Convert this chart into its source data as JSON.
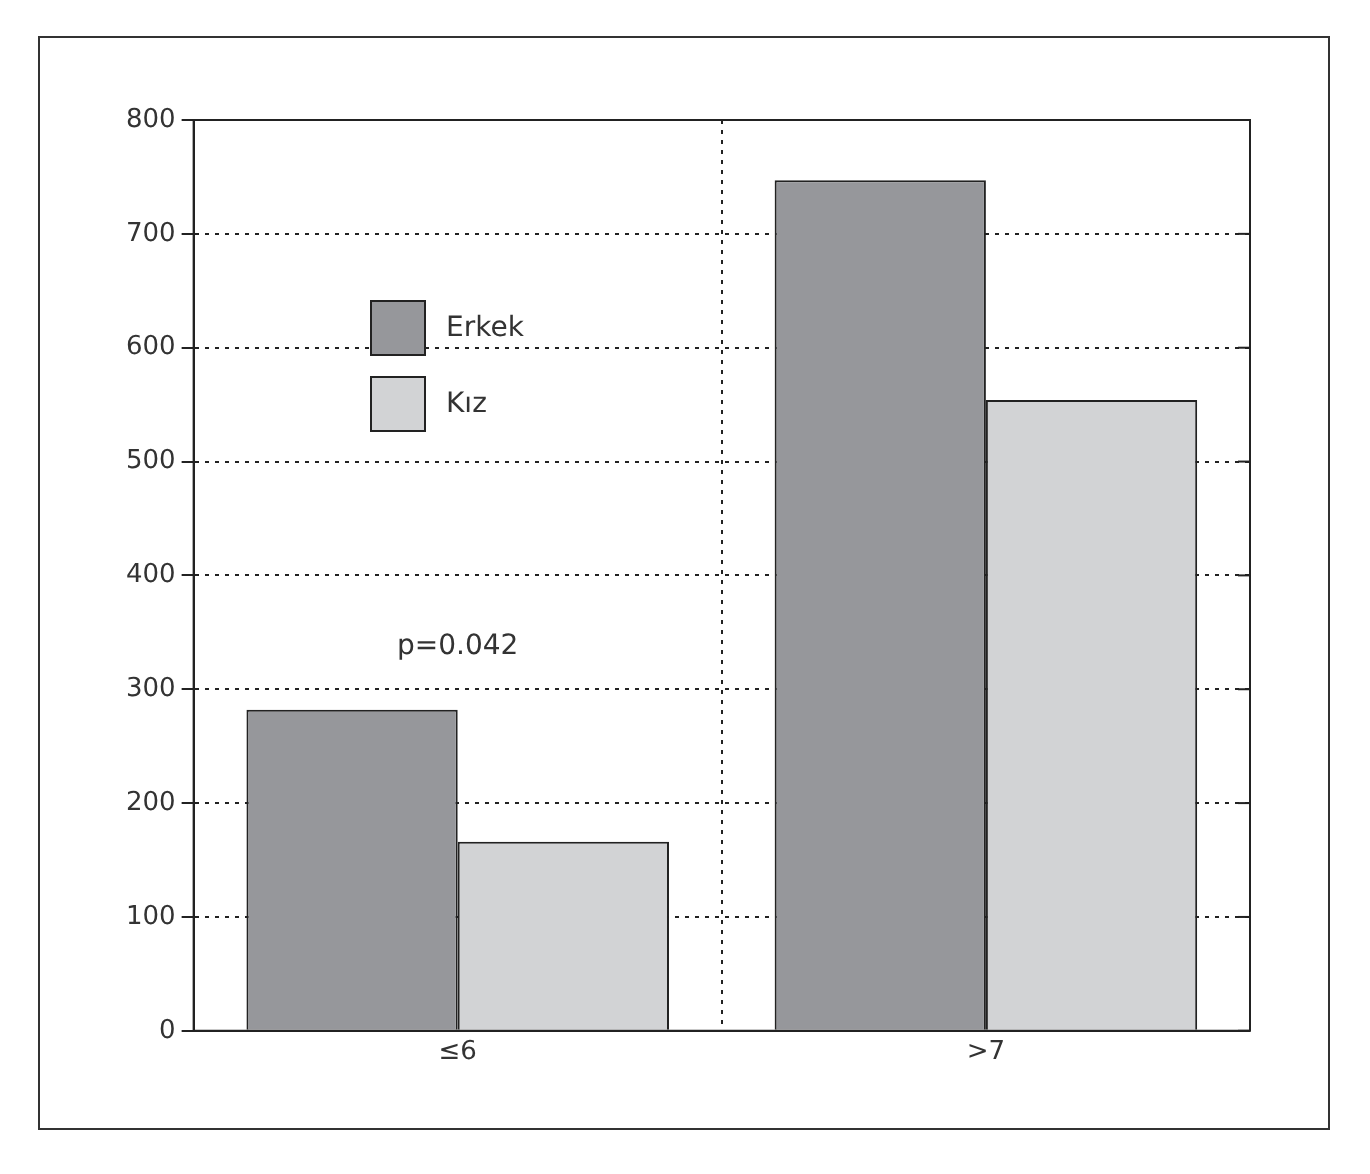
{
  "chart_data": {
    "type": "bar",
    "categories": [
      "≤6",
      ">7"
    ],
    "series": [
      {
        "name": "Erkek",
        "color": "#96979b",
        "values": [
          282,
          747
        ]
      },
      {
        "name": "Kız",
        "color": "#d2d3d5",
        "values": [
          166,
          554
        ]
      }
    ],
    "ylim": [
      0,
      800
    ],
    "yticks": [
      0,
      100,
      200,
      300,
      400,
      500,
      600,
      700,
      800
    ],
    "grid": true,
    "legend": "top left",
    "annotations": [
      "p=0.042"
    ]
  }
}
